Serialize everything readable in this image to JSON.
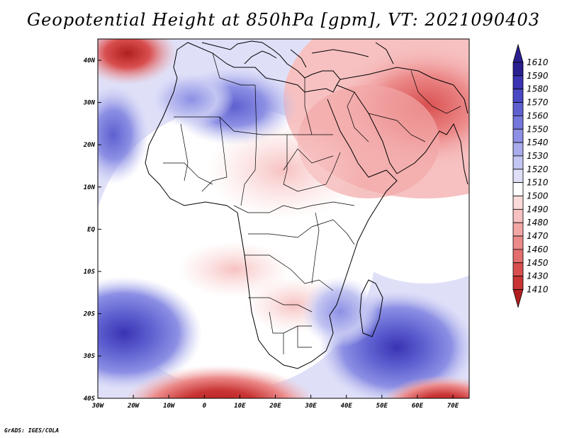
{
  "title": "Geopotential Height at 850hPa [gpm], VT: 2021090403",
  "credit": "GrADS: IGES/COLA",
  "lon_ticks": [
    "30W",
    "20W",
    "10W",
    "0",
    "10E",
    "20E",
    "30E",
    "40E",
    "50E",
    "60E",
    "70E"
  ],
  "lat_ticks": [
    "40N",
    "30N",
    "20N",
    "10N",
    "EQ",
    "10S",
    "20S",
    "30S",
    "40S"
  ],
  "colorbar": [
    {
      "value": "1610",
      "color": "#2a1f8f"
    },
    {
      "value": "1590",
      "color": "#3a33b3"
    },
    {
      "value": "1580",
      "color": "#4a49c4"
    },
    {
      "value": "1570",
      "color": "#5e60d0"
    },
    {
      "value": "1560",
      "color": "#7477db"
    },
    {
      "value": "1550",
      "color": "#8d90e4"
    },
    {
      "value": "1540",
      "color": "#a8abec"
    },
    {
      "value": "1530",
      "color": "#c3c5f2"
    },
    {
      "value": "1520",
      "color": "#dfe0f8"
    },
    {
      "value": "1510",
      "color": "#ffffff"
    },
    {
      "value": "1500",
      "color": "#fbdada"
    },
    {
      "value": "1490",
      "color": "#f7c1c1"
    },
    {
      "value": "1480",
      "color": "#f2a6a6"
    },
    {
      "value": "1470",
      "color": "#ec8a8a"
    },
    {
      "value": "1460",
      "color": "#e46e6e"
    },
    {
      "value": "1450",
      "color": "#d94f4f"
    },
    {
      "value": "1430",
      "color": "#c93434"
    },
    {
      "value": "1410",
      "color": "#b01f1f"
    }
  ]
}
